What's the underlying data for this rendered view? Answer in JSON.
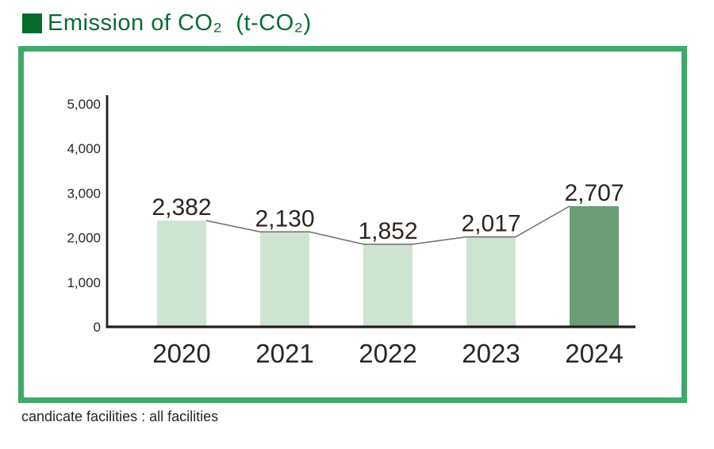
{
  "header": {
    "title": "Emission of CO₂  (t-CO₂)",
    "bullet_color": "#076a2e",
    "title_color": "#0a6b33"
  },
  "frame": {
    "border_color": "#3fa96b"
  },
  "caption": {
    "text": "candicate facilities : all facilities"
  },
  "chart_data": {
    "type": "bar",
    "title": "Emission of CO₂ (t-CO₂)",
    "categories": [
      "2020",
      "2021",
      "2022",
      "2023",
      "2024"
    ],
    "values": [
      2382,
      2130,
      1852,
      2017,
      2707
    ],
    "value_labels": [
      "2,382",
      "2,130",
      "1,852",
      "2,017",
      "2,707"
    ],
    "xlabel": "",
    "ylabel": "",
    "ylim": [
      0,
      5000
    ],
    "ytick_step": 1000,
    "ytick_labels": [
      "0",
      "1,000",
      "2,000",
      "3,000",
      "4,000",
      "5,000"
    ],
    "grid": false,
    "legend_position": "none",
    "bar_colors": [
      "#cfe3d2",
      "#cfe3d2",
      "#cfe3d2",
      "#cfe3d2",
      "#6a9c77"
    ],
    "highlight_index": 4,
    "line_color": "#6f6d69",
    "line_note": "thin gray line connecting the top corners of adjacent bars",
    "axis_color": "#241f1c",
    "label_color": "#2b2521"
  }
}
